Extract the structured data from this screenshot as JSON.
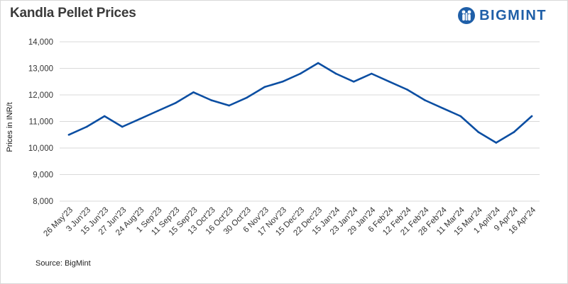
{
  "header": {
    "title": "Kandla Pellet Prices",
    "logo_text": "BIGMINT"
  },
  "footer": {
    "source": "Source: BigMint"
  },
  "colors": {
    "line": "#0b4ea2",
    "grid": "#d9d9d9",
    "logo": "#1f5fa8"
  },
  "icons": {
    "logo": "people-circle-icon"
  },
  "chart_data": {
    "type": "line",
    "title": "Kandla Pellet Prices",
    "xlabel": "",
    "ylabel": "Prices in INR/t",
    "ylim": [
      8000,
      14000
    ],
    "yticks": [
      8000,
      9000,
      10000,
      11000,
      12000,
      13000,
      14000
    ],
    "ytick_labels": [
      "8,000",
      "9,000",
      "10,000",
      "11,000",
      "12,000",
      "13,000",
      "14,000"
    ],
    "grid": true,
    "legend": "none",
    "categories": [
      "26 May'23",
      "3 Jun'23",
      "15 Jun'23",
      "27 Jun'23",
      "24 Aug'23",
      "1 Sep'23",
      "11 Sep'23",
      "15 Sep'23",
      "13 Oct'23",
      "16 Oct'23",
      "30 Oct'23",
      "6 Nov'23",
      "17 Nov'23",
      "15 Dec'23",
      "22 Dec'23",
      "15 Jan'24",
      "23 Jan'24",
      "29 Jan'24",
      "6 Feb'24",
      "12 Feb'24",
      "21 Feb'24",
      "28 Feb'24",
      "11 Mar'24",
      "15 Mar'24",
      "1 April'24",
      "9 Apr'24",
      "16 Apr'24"
    ],
    "series": [
      {
        "values": [
          10500,
          10800,
          11200,
          10800,
          11100,
          11400,
          11700,
          12100,
          11800,
          11600,
          11900,
          12300,
          12500,
          12800,
          13200,
          12800,
          12500,
          12800,
          12500,
          12200,
          11800,
          11500,
          11200,
          10600,
          10200,
          10600,
          11200
        ]
      }
    ]
  }
}
